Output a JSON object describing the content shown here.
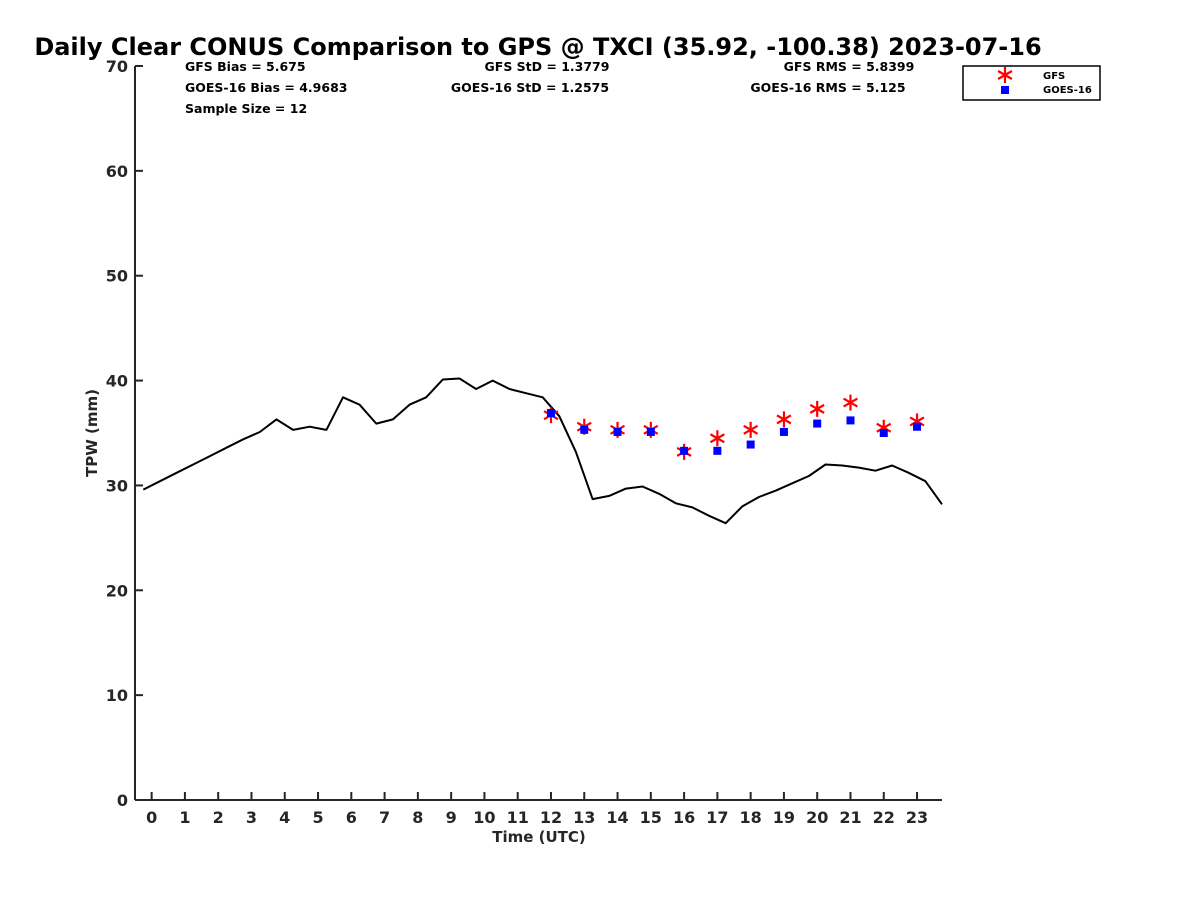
{
  "chart_data": {
    "type": "scatter",
    "title": "Daily Clear CONUS Comparison to GPS @ TXCI (35.92, -100.38) 2023-07-16",
    "xlabel": "Time (UTC)",
    "ylabel": "TPW (mm)",
    "xlim": [
      -0.5,
      23.75
    ],
    "ylim": [
      0,
      70
    ],
    "x_ticks": [
      "0",
      "1",
      "2",
      "3",
      "4",
      "5",
      "6",
      "7",
      "8",
      "9",
      "10",
      "11",
      "12",
      "13",
      "14",
      "15",
      "16",
      "17",
      "18",
      "19",
      "20",
      "21",
      "22",
      "23"
    ],
    "y_ticks": [
      "0",
      "10",
      "20",
      "30",
      "40",
      "50",
      "60",
      "70"
    ],
    "grid": false,
    "legend_position": "top-right",
    "stats": {
      "gfs_bias": "GFS Bias = 5.675",
      "goes_bias": "GOES-16 Bias = 4.9683",
      "sample_size": "Sample Size = 12",
      "gfs_std": "GFS StD = 1.3779",
      "goes_std": "GOES-16 StD = 1.2575",
      "gfs_rms": "GFS RMS = 5.8399",
      "goes_rms": "GOES-16 RMS = 5.125"
    },
    "series": [
      {
        "name": "",
        "kind": "line",
        "color": "#000000",
        "x": [
          -0.25,
          0.25,
          0.75,
          1.25,
          1.75,
          2.25,
          2.75,
          3.25,
          3.75,
          4.25,
          4.75,
          5.25,
          5.75,
          6.25,
          6.75,
          7.25,
          7.75,
          8.25,
          8.75,
          9.25,
          9.75,
          10.25,
          10.75,
          11.25,
          11.75,
          12.25,
          12.75,
          13.25,
          13.75,
          14.25,
          14.75,
          15.25,
          15.75,
          16.25,
          16.75,
          17.25,
          17.75,
          18.25,
          18.75,
          19.25,
          19.75,
          20.25,
          20.75,
          21.25,
          21.75,
          22.25,
          22.75,
          23.25,
          23.75
        ],
        "y": [
          29.6,
          30.4,
          31.2,
          32.0,
          32.8,
          33.6,
          34.4,
          35.1,
          36.3,
          35.3,
          35.6,
          35.3,
          38.4,
          37.7,
          35.9,
          36.3,
          37.7,
          38.4,
          40.1,
          40.2,
          39.2,
          40.0,
          39.2,
          38.8,
          38.4,
          36.6,
          33.2,
          28.7,
          29.0,
          29.7,
          29.9,
          29.2,
          28.3,
          27.9,
          27.1,
          26.4,
          28.0,
          28.9,
          29.5,
          30.2,
          30.9,
          32.0,
          31.9,
          31.7,
          31.4,
          31.9,
          31.2,
          30.4,
          28.2
        ]
      },
      {
        "name": "GFS",
        "kind": "marker",
        "marker": "asterisk",
        "color": "#ff0000",
        "x": [
          12,
          13,
          14,
          15,
          16,
          17,
          18,
          19,
          20,
          21,
          22,
          23
        ],
        "y": [
          36.7,
          35.6,
          35.3,
          35.3,
          33.2,
          34.5,
          35.3,
          36.3,
          37.3,
          37.9,
          35.5,
          36.1
        ]
      },
      {
        "name": "GOES-16",
        "kind": "marker",
        "marker": "square",
        "color": "#0000ff",
        "x": [
          12,
          13,
          14,
          15,
          16,
          17,
          18,
          19,
          20,
          21,
          22,
          23
        ],
        "y": [
          36.9,
          35.3,
          35.1,
          35.1,
          33.3,
          33.3,
          33.9,
          35.1,
          35.9,
          36.2,
          35.0,
          35.6
        ]
      }
    ]
  }
}
